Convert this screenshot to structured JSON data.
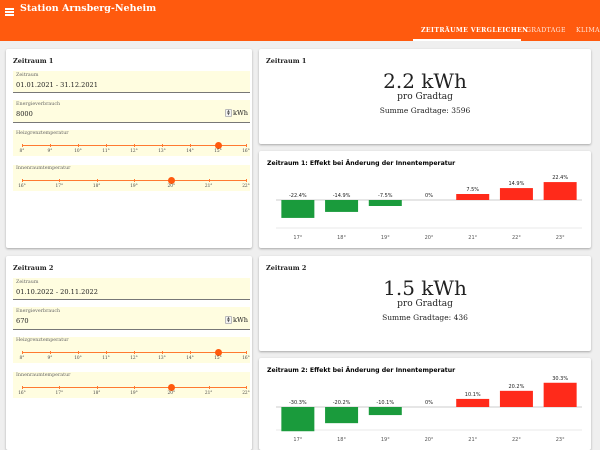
{
  "app": {
    "title": "Station Arnsberg-Neheim"
  },
  "tabs": [
    {
      "label": "ZEITRÄUME VERGLEICHEN",
      "active": true
    },
    {
      "label": "GRADTAGE"
    },
    {
      "label": "KLIMA"
    }
  ],
  "periods": [
    {
      "title": "Zeitraum 1",
      "zeitraum_label": "Zeitraum",
      "zeitraum_value": "01.01.2021 - 31.12.2021",
      "energy_label": "Energieverbrauch",
      "energy_value": "8000",
      "unit": "kWh",
      "heating_label": "Heizgrenztemperatur",
      "heating_ticks": [
        "8°",
        "9°",
        "10°",
        "11°",
        "12°",
        "13°",
        "14°",
        "15°",
        "16°"
      ],
      "heating_value": 15,
      "indoor_label": "Innenraumtemperatur",
      "indoor_ticks": [
        "16°",
        "17°",
        "18°",
        "19°",
        "20°",
        "21°",
        "22°"
      ],
      "indoor_value": 20,
      "result_title": "Zeitraum 1",
      "result_value": "2.2 kWh",
      "result_unit": "pro Gradtag",
      "result_sum": "Summe Gradtage: 3596"
    },
    {
      "title": "Zeitraum 2",
      "zeitraum_label": "Zeitraum",
      "zeitraum_value": "01.10.2022 - 20.11.2022",
      "energy_label": "Energieverbrauch",
      "energy_value": "670",
      "unit": "kWh",
      "heating_label": "Heizgrenztemperatur",
      "heating_ticks": [
        "8°",
        "9°",
        "10°",
        "11°",
        "12°",
        "13°",
        "14°",
        "15°",
        "16°"
      ],
      "heating_value": 15,
      "indoor_label": "Innenraumtemperatur",
      "indoor_ticks": [
        "16°",
        "17°",
        "18°",
        "19°",
        "20°",
        "21°",
        "22°"
      ],
      "indoor_value": 20,
      "result_title": "Zeitraum 2",
      "result_value": "1.5 kWh",
      "result_unit": "pro Gradtag",
      "result_sum": "Summe Gradtage: 436"
    }
  ],
  "colors": {
    "appbar": "#ff5a0e",
    "positive": "#ff2a1a",
    "negative": "#1a9b3c",
    "field_bg": "#fffde0"
  },
  "chart_data": [
    {
      "type": "bar",
      "title": "Zeitraum 1: Effekt bei Änderung der Innentemperatur",
      "categories": [
        "17°",
        "18°",
        "19°",
        "20°",
        "21°",
        "22°",
        "23°"
      ],
      "values": [
        -22.4,
        -14.9,
        -7.5,
        0,
        7.5,
        14.9,
        22.4
      ],
      "labels": [
        "-22.4%",
        "-14.9%",
        "-7.5%",
        "0%",
        "7.5%",
        "14.9%",
        "22.4%"
      ]
    },
    {
      "type": "bar",
      "title": "Zeitraum 2: Effekt bei Änderung der Innentemperatur",
      "categories": [
        "17°",
        "18°",
        "19°",
        "20°",
        "21°",
        "22°",
        "23°"
      ],
      "values": [
        -30.3,
        -20.2,
        -10.1,
        0,
        10.1,
        20.2,
        30.3
      ],
      "labels": [
        "-30.3%",
        "-20.2%",
        "-10.1%",
        "0%",
        "10.1%",
        "20.2%",
        "30.3%"
      ]
    }
  ]
}
